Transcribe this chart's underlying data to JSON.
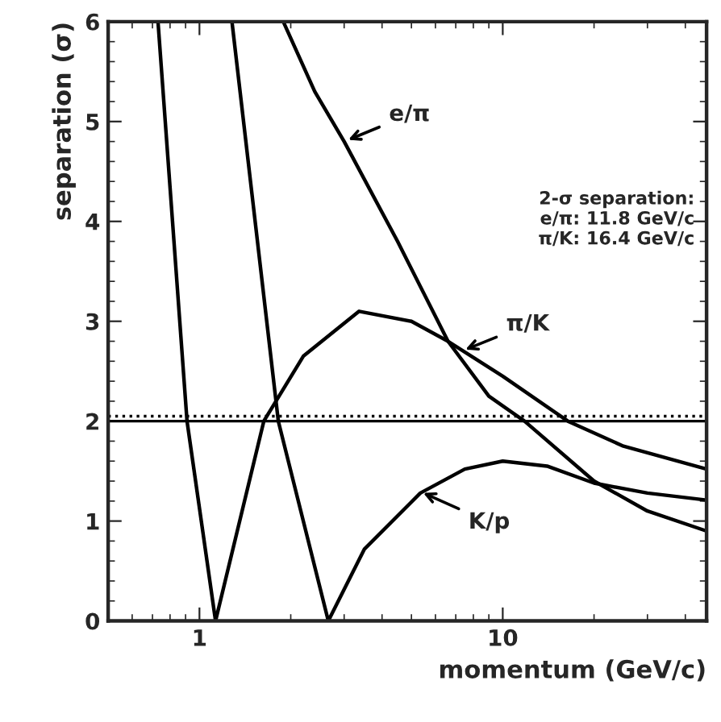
{
  "chart_data": {
    "type": "line",
    "xlabel": "momentum (GeV/c)",
    "ylabel": "separation (σ)",
    "log": "x",
    "xlim": [
      0.5,
      47
    ],
    "xticks": [
      1,
      10
    ],
    "ylim": [
      0,
      6
    ],
    "yticks": [
      0,
      1,
      2,
      3,
      4,
      5,
      6
    ],
    "grid": false,
    "legend": false,
    "marker": "none",
    "line_style": "solid",
    "series": [
      {
        "color": "#000000",
        "x": [
          1.89,
          2.4,
          3.0,
          4.5,
          6.6,
          9,
          11.8,
          20,
          30,
          47
        ],
        "values": [
          6,
          5.3,
          4.8,
          3.8,
          2.8,
          2.25,
          2.0,
          1.4,
          1.1,
          0.9
        ]
      },
      {
        "color": "#000000",
        "x": [
          0.73,
          0.91,
          1.13,
          1.63,
          2.2,
          3.36,
          5,
          6.6,
          10,
          16.4,
          25,
          47
        ],
        "values": [
          6,
          2,
          0,
          2,
          2.65,
          3.1,
          3.0,
          2.8,
          2.45,
          2.0,
          1.75,
          1.52
        ]
      },
      {
        "color": "#000000",
        "x": [
          1.28,
          1.82,
          2.66,
          3.5,
          5.35,
          7.5,
          10,
          14,
          20,
          30,
          47
        ],
        "values": [
          6,
          2,
          0,
          0.72,
          1.28,
          1.52,
          1.6,
          1.55,
          1.38,
          1.28,
          1.21
        ]
      }
    ],
    "ref_lines": [
      {
        "axis": "y",
        "value": 2,
        "color": "#000000",
        "line_style": "solid"
      },
      {
        "axis": "y",
        "value": 2.05,
        "color": "#000000",
        "line_style": "dotted"
      }
    ],
    "annotations": [
      {
        "text": "e/π",
        "x": 3.0,
        "y": 4.8
      },
      {
        "text": "π/K",
        "x": 7.3,
        "y": 2.7
      },
      {
        "text": "K/p",
        "x": 5.3,
        "y": 1.3
      },
      "2-σ separation:\ne/π: 11.8 GeV/c\nπ/K: 16.4 GeV/c"
    ]
  }
}
